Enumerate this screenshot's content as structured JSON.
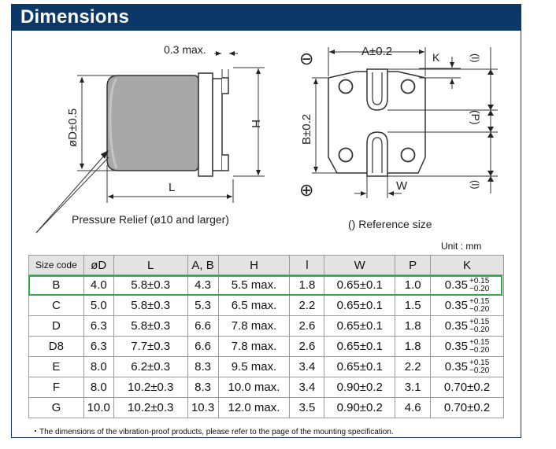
{
  "header": {
    "title": "Dimensions"
  },
  "drawing": {
    "side_labels": {
      "lead_thickness": "0.3 max.",
      "diameter": "øD±0.5",
      "length": "L",
      "height": "H"
    },
    "pressure_relief": "Pressure Relief (ø10 and larger)",
    "front_labels": {
      "width_ab": "A±0.2",
      "k": "K",
      "height_b": "B±0.2",
      "w": "W",
      "l_top": "(l)",
      "p": "(P)",
      "l_bottom": "(l)",
      "minus": "⊖",
      "plus": "⊕"
    },
    "reference_note": "()  Reference size"
  },
  "unit_label": "Unit : mm",
  "table": {
    "headers": [
      "Size code",
      "øD",
      "L",
      "A, B",
      "H",
      "l",
      "W",
      "P",
      "K"
    ],
    "rows": [
      {
        "code": "B",
        "d": "4.0",
        "l": "5.8±0.3",
        "ab": "4.3",
        "h": "5.5 max.",
        "ll": "1.8",
        "w": "0.65±0.1",
        "p": "1.0",
        "k": "0.35",
        "k_up": "+0.15",
        "k_dn": "−0.20"
      },
      {
        "code": "C",
        "d": "5.0",
        "l": "5.8±0.3",
        "ab": "5.3",
        "h": "6.5 max.",
        "ll": "2.2",
        "w": "0.65±0.1",
        "p": "1.5",
        "k": "0.35",
        "k_up": "+0.15",
        "k_dn": "−0.20"
      },
      {
        "code": "D",
        "d": "6.3",
        "l": "5.8±0.3",
        "ab": "6.6",
        "h": "7.8 max.",
        "ll": "2.6",
        "w": "0.65±0.1",
        "p": "1.8",
        "k": "0.35",
        "k_up": "+0.15",
        "k_dn": "−0.20"
      },
      {
        "code": "D8",
        "d": "6.3",
        "l": "7.7±0.3",
        "ab": "6.6",
        "h": "7.8 max.",
        "ll": "2.6",
        "w": "0.65±0.1",
        "p": "1.8",
        "k": "0.35",
        "k_up": "+0.15",
        "k_dn": "−0.20"
      },
      {
        "code": "E",
        "d": "8.0",
        "l": "6.2±0.3",
        "ab": "8.3",
        "h": "9.5 max.",
        "ll": "3.4",
        "w": "0.65±0.1",
        "p": "2.2",
        "k": "0.35",
        "k_up": "+0.15",
        "k_dn": "−0.20"
      },
      {
        "code": "F",
        "d": "8.0",
        "l": "10.2±0.3",
        "ab": "8.3",
        "h": "10.0 max.",
        "ll": "3.4",
        "w": "0.90±0.2",
        "p": "3.1",
        "k": "0.70±0.2"
      },
      {
        "code": "G",
        "d": "10.0",
        "l": "10.2±0.3",
        "ab": "10.3",
        "h": "12.0 max.",
        "ll": "3.5",
        "w": "0.90±0.2",
        "p": "4.6",
        "k": "0.70±0.2"
      }
    ],
    "highlight_color": "#2fa84a",
    "header_bg": "#e4e4e4"
  },
  "footnote": "・The dimensions of the vibration-proof products, please refer to the page of the mounting specification.",
  "colors": {
    "header_bg": "#0b3866",
    "header_text": "#ffffff"
  }
}
